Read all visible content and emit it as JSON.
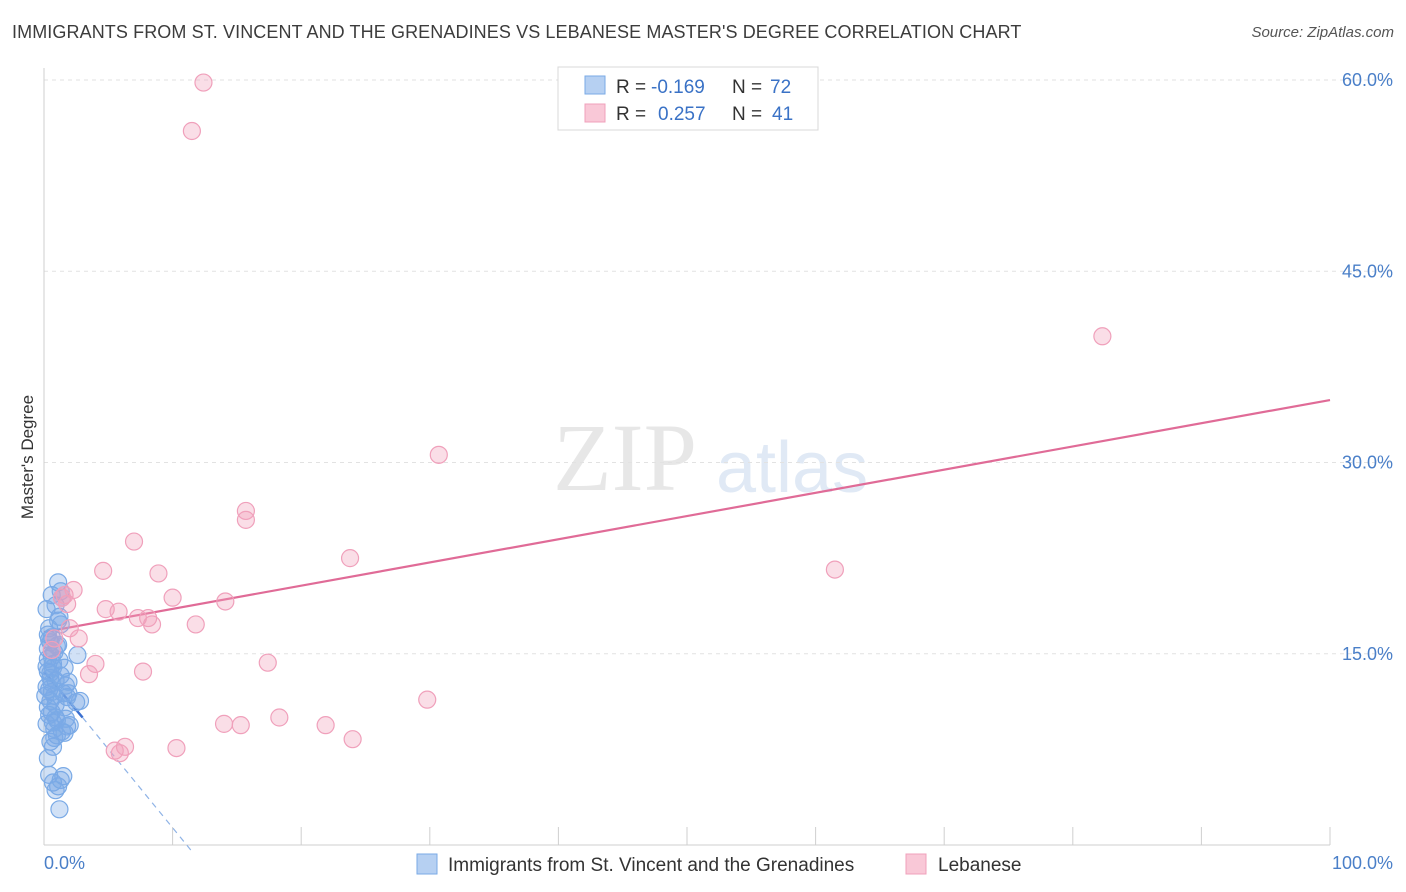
{
  "title": "IMMIGRANTS FROM ST. VINCENT AND THE GRENADINES VS LEBANESE MASTER'S DEGREE CORRELATION CHART",
  "source": "Source: ZipAtlas.com",
  "watermark": {
    "zip": "ZIP",
    "atlas": "atlas"
  },
  "legend": {
    "r_label": "R =",
    "n_label": "N =",
    "rows": [
      {
        "r": "-0.169",
        "n": "72"
      },
      {
        "r": "0.257",
        "n": "41"
      }
    ]
  },
  "chart_data": {
    "type": "scatter",
    "title": "IMMIGRANTS FROM ST. VINCENT AND THE GRENADINES VS LEBANESE MASTER'S DEGREE CORRELATION CHART",
    "xlabel": "",
    "ylabel": "Master's Degree",
    "xlim": [
      0,
      100
    ],
    "ylim": [
      0,
      60
    ],
    "x_tick_labels": [
      "0.0%",
      "100.0%"
    ],
    "y_ticks": [
      15,
      30,
      45,
      60
    ],
    "y_tick_labels": [
      "15.0%",
      "30.0%",
      "45.0%",
      "60.0%"
    ],
    "grid": true,
    "legend_position": "top-center",
    "colors": {
      "blue": "#7aaae6",
      "blue_line": "#3a6fd0",
      "pink": "#f0a0bb",
      "pink_line": "#e06b97"
    },
    "series": [
      {
        "name": "Immigrants from St. Vincent and the Grenadines",
        "color": "#7aaae6",
        "r": -0.169,
        "n": 72,
        "trend": {
          "x": [
            0,
            3.0
          ],
          "y": [
            13.6,
            10.0
          ],
          "dashed_extension": {
            "x": [
              3.0,
              11.5
            ],
            "y": [
              10.0,
              -0.5
            ]
          }
        },
        "points": [
          [
            0.2,
            18.5
          ],
          [
            0.3,
            16.5
          ],
          [
            0.4,
            16.1
          ],
          [
            0.5,
            15.9
          ],
          [
            0.6,
            14.8
          ],
          [
            0.7,
            14.2
          ],
          [
            0.3,
            13.6
          ],
          [
            0.5,
            13.1
          ],
          [
            0.6,
            12.7
          ],
          [
            0.4,
            12.2
          ],
          [
            0.8,
            11.7
          ],
          [
            0.5,
            11.3
          ],
          [
            0.6,
            10.4
          ],
          [
            0.9,
            10.0
          ],
          [
            0.7,
            9.6
          ],
          [
            0.8,
            9.1
          ],
          [
            1.0,
            8.6
          ],
          [
            0.5,
            8.1
          ],
          [
            0.7,
            7.7
          ],
          [
            0.9,
            12.9
          ],
          [
            1.2,
            14.5
          ],
          [
            1.0,
            15.6
          ],
          [
            1.1,
            17.6
          ],
          [
            1.2,
            17.9
          ],
          [
            1.1,
            20.6
          ],
          [
            1.3,
            19.9
          ],
          [
            1.4,
            19.4
          ],
          [
            1.3,
            17.3
          ],
          [
            1.6,
            13.9
          ],
          [
            1.7,
            12.5
          ],
          [
            1.5,
            11.9
          ],
          [
            1.8,
            11.6
          ],
          [
            1.6,
            10.8
          ],
          [
            1.7,
            9.9
          ],
          [
            1.8,
            9.3
          ],
          [
            1.6,
            8.8
          ],
          [
            2.6,
            14.9
          ],
          [
            2.8,
            11.3
          ],
          [
            2.5,
            11.2
          ],
          [
            0.4,
            5.5
          ],
          [
            0.7,
            4.9
          ],
          [
            0.9,
            4.3
          ],
          [
            1.1,
            4.6
          ],
          [
            1.3,
            5.1
          ],
          [
            1.5,
            5.4
          ],
          [
            1.2,
            2.8
          ],
          [
            0.3,
            6.8
          ],
          [
            0.2,
            9.5
          ],
          [
            0.3,
            10.8
          ],
          [
            0.6,
            12.0
          ],
          [
            0.2,
            14.0
          ],
          [
            0.8,
            15.1
          ],
          [
            0.4,
            17.0
          ],
          [
            0.9,
            18.8
          ],
          [
            0.6,
            19.6
          ],
          [
            0.3,
            15.4
          ],
          [
            0.5,
            13.5
          ],
          [
            0.9,
            11.0
          ],
          [
            1.3,
            13.3
          ],
          [
            1.9,
            11.9
          ],
          [
            2.0,
            9.4
          ],
          [
            1.4,
            8.9
          ],
          [
            0.1,
            11.7
          ],
          [
            0.2,
            12.4
          ],
          [
            0.4,
            10.2
          ],
          [
            1.0,
            9.8
          ],
          [
            0.8,
            8.4
          ],
          [
            0.6,
            16.3
          ],
          [
            1.1,
            15.7
          ],
          [
            1.9,
            12.8
          ],
          [
            0.3,
            14.6
          ],
          [
            0.7,
            13.9
          ]
        ]
      },
      {
        "name": "Lebanese",
        "color": "#f0a0bb",
        "r": 0.257,
        "n": 41,
        "trend": {
          "x": [
            0,
            100
          ],
          "y": [
            16.7,
            34.9
          ]
        },
        "points": [
          [
            12.4,
            59.8
          ],
          [
            11.5,
            56.0
          ],
          [
            82.3,
            39.9
          ],
          [
            30.7,
            30.6
          ],
          [
            15.7,
            25.5
          ],
          [
            15.7,
            26.2
          ],
          [
            7.0,
            23.8
          ],
          [
            23.8,
            22.5
          ],
          [
            4.6,
            21.5
          ],
          [
            8.9,
            21.3
          ],
          [
            61.5,
            21.6
          ],
          [
            2.3,
            20.0
          ],
          [
            1.6,
            19.6
          ],
          [
            10.0,
            19.4
          ],
          [
            14.1,
            19.1
          ],
          [
            1.8,
            18.9
          ],
          [
            4.8,
            18.5
          ],
          [
            5.8,
            18.3
          ],
          [
            7.3,
            17.8
          ],
          [
            8.1,
            17.8
          ],
          [
            8.4,
            17.3
          ],
          [
            11.8,
            17.3
          ],
          [
            2.0,
            17.0
          ],
          [
            0.8,
            16.2
          ],
          [
            2.7,
            16.2
          ],
          [
            0.6,
            15.3
          ],
          [
            4.0,
            14.2
          ],
          [
            17.4,
            14.3
          ],
          [
            7.7,
            13.6
          ],
          [
            3.5,
            13.4
          ],
          [
            29.8,
            11.4
          ],
          [
            18.3,
            10.0
          ],
          [
            14.0,
            9.5
          ],
          [
            15.3,
            9.4
          ],
          [
            21.9,
            9.4
          ],
          [
            24.0,
            8.3
          ],
          [
            10.3,
            7.6
          ],
          [
            5.5,
            7.4
          ],
          [
            6.3,
            7.7
          ],
          [
            5.9,
            7.2
          ],
          [
            1.4,
            19.4
          ]
        ]
      }
    ]
  },
  "bottom_legend": [
    {
      "label": "Immigrants from St. Vincent and the Grenadines",
      "color": "#7aaae6"
    },
    {
      "label": "Lebanese",
      "color": "#f0a0bb"
    }
  ]
}
